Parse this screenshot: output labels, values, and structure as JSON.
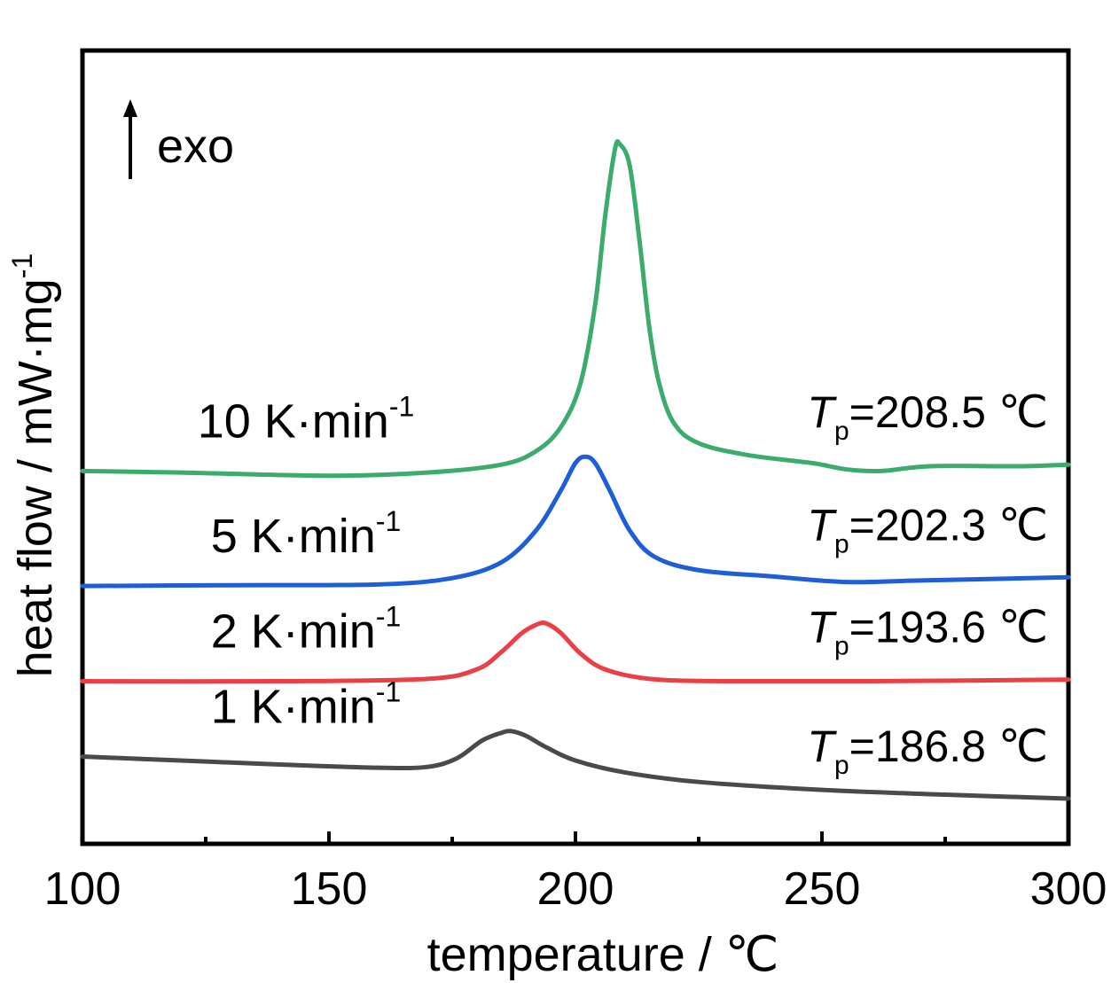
{
  "chart_data": {
    "type": "line",
    "xlabel": "temperature / ℃",
    "ylabel": "heat flow / mW·mg",
    "ylabel_sup": "-1",
    "xlim": [
      100,
      300
    ],
    "xticks": [
      "100",
      "150",
      "200",
      "250",
      "300"
    ],
    "x_minor_ticks": [
      125,
      175,
      225,
      275
    ],
    "ylim": [
      0,
      10
    ],
    "y_ticks_shown": false,
    "grid": false,
    "annotation": "exo",
    "series": [
      {
        "name": "1 K·min",
        "name_sup": "-1",
        "color": "#4a4a4a",
        "peak_T": "186.8 ℃",
        "points": [
          [
            100,
            1.1
          ],
          [
            120,
            1.05
          ],
          [
            140,
            1.0
          ],
          [
            160,
            0.96
          ],
          [
            170,
            0.97
          ],
          [
            176,
            1.08
          ],
          [
            181,
            1.3
          ],
          [
            185,
            1.4
          ],
          [
            187,
            1.42
          ],
          [
            190,
            1.36
          ],
          [
            194,
            1.22
          ],
          [
            200,
            1.05
          ],
          [
            210,
            0.9
          ],
          [
            225,
            0.78
          ],
          [
            250,
            0.68
          ],
          [
            275,
            0.62
          ],
          [
            300,
            0.57
          ]
        ]
      },
      {
        "name": "2 K·min",
        "name_sup": "-1",
        "color": "#e84045",
        "peak_T": "193.6 ℃",
        "points": [
          [
            100,
            2.05
          ],
          [
            140,
            2.05
          ],
          [
            170,
            2.08
          ],
          [
            180,
            2.2
          ],
          [
            185,
            2.42
          ],
          [
            189,
            2.65
          ],
          [
            192,
            2.76
          ],
          [
            194,
            2.78
          ],
          [
            197,
            2.66
          ],
          [
            201,
            2.4
          ],
          [
            206,
            2.2
          ],
          [
            215,
            2.08
          ],
          [
            230,
            2.05
          ],
          [
            260,
            2.05
          ],
          [
            300,
            2.07
          ]
        ]
      },
      {
        "name": "5 K·min",
        "name_sup": "-1",
        "color": "#1f5fd6",
        "peak_T": "202.3 ℃",
        "points": [
          [
            100,
            3.25
          ],
          [
            130,
            3.26
          ],
          [
            160,
            3.27
          ],
          [
            175,
            3.35
          ],
          [
            185,
            3.55
          ],
          [
            192,
            3.95
          ],
          [
            197,
            4.45
          ],
          [
            200,
            4.8
          ],
          [
            202,
            4.88
          ],
          [
            204,
            4.8
          ],
          [
            207,
            4.45
          ],
          [
            211,
            3.95
          ],
          [
            216,
            3.62
          ],
          [
            225,
            3.45
          ],
          [
            240,
            3.37
          ],
          [
            255,
            3.3
          ],
          [
            270,
            3.32
          ],
          [
            300,
            3.36
          ]
        ]
      },
      {
        "name": "10 K·min",
        "name_sup": "-1",
        "color": "#3bab6e",
        "peak_T": "208.5 ℃",
        "points": [
          [
            100,
            4.7
          ],
          [
            120,
            4.68
          ],
          [
            150,
            4.64
          ],
          [
            170,
            4.68
          ],
          [
            185,
            4.78
          ],
          [
            192,
            4.95
          ],
          [
            197,
            5.25
          ],
          [
            201,
            5.8
          ],
          [
            204,
            6.8
          ],
          [
            206,
            7.9
          ],
          [
            208,
            8.75
          ],
          [
            209,
            8.82
          ],
          [
            211,
            8.55
          ],
          [
            213,
            7.6
          ],
          [
            215,
            6.5
          ],
          [
            217,
            5.8
          ],
          [
            220,
            5.3
          ],
          [
            225,
            5.05
          ],
          [
            235,
            4.9
          ],
          [
            248,
            4.8
          ],
          [
            255,
            4.72
          ],
          [
            262,
            4.7
          ],
          [
            272,
            4.76
          ],
          [
            290,
            4.76
          ],
          [
            300,
            4.78
          ]
        ]
      }
    ]
  }
}
